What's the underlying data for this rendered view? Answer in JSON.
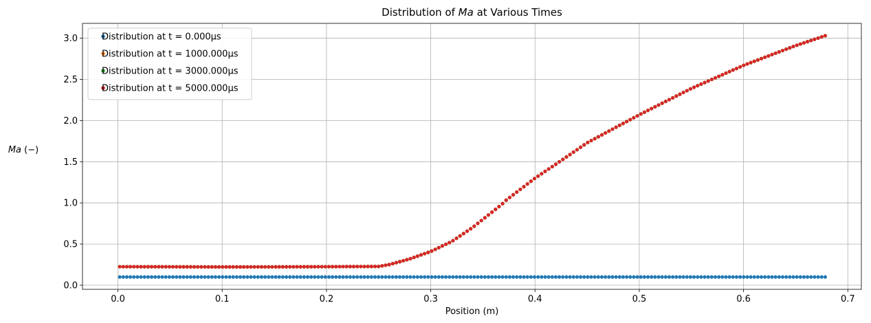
{
  "chart_data": {
    "type": "scatter",
    "title_prefix": "Distribution of ",
    "title_var": "Ma",
    "title_suffix": " at Various Times",
    "xlabel": "Position (m)",
    "ylabel_var": "Ma",
    "ylabel_unit": " (−)",
    "xlim": [
      -0.034,
      0.713
    ],
    "ylim": [
      -0.05,
      3.18
    ],
    "xticks": [
      0.0,
      0.1,
      0.2,
      0.3,
      0.4,
      0.5,
      0.6,
      0.7
    ],
    "xtick_labels": [
      "0.0",
      "0.1",
      "0.2",
      "0.3",
      "0.4",
      "0.5",
      "0.6",
      "0.7"
    ],
    "yticks": [
      0.0,
      0.5,
      1.0,
      1.5,
      2.0,
      2.5,
      3.0
    ],
    "ytick_labels": [
      "0.0",
      "0.5",
      "1.0",
      "1.5",
      "2.0",
      "2.5",
      "3.0"
    ],
    "grid": true,
    "legend_position": "top-left",
    "x_range": [
      0.0017,
      0.6783
    ],
    "n_points": 200,
    "series": [
      {
        "name_prefix": "Distribution at t = ",
        "name_value": "0.000",
        "name_unit": "μs",
        "color": "#1f77b4",
        "profile_x": [
          0.0017,
          0.6783
        ],
        "profile_y": [
          0.1,
          0.1
        ]
      },
      {
        "name_prefix": "Distribution at t = ",
        "name_value": "1000.000",
        "name_unit": "μs",
        "color": "#ff7f0e",
        "profile_x": [
          0.0017,
          0.05,
          0.1,
          0.15,
          0.2,
          0.25,
          0.26,
          0.28,
          0.3,
          0.32,
          0.34,
          0.36,
          0.368,
          0.372,
          0.4,
          0.42,
          0.45,
          0.5,
          0.55,
          0.6,
          0.65,
          0.6783
        ],
        "profile_y": [
          0.225,
          0.224,
          0.222,
          0.223,
          0.225,
          0.228,
          0.25,
          0.32,
          0.41,
          0.53,
          0.7,
          0.9,
          0.98,
          1.03,
          1.3,
          1.47,
          1.73,
          2.07,
          2.39,
          2.67,
          2.91,
          3.03
        ]
      },
      {
        "name_prefix": "Distribution at t = ",
        "name_value": "3000.000",
        "name_unit": "μs",
        "color": "#2ca02c",
        "profile_x": [
          0.0017,
          0.05,
          0.1,
          0.15,
          0.2,
          0.25,
          0.26,
          0.28,
          0.3,
          0.32,
          0.34,
          0.36,
          0.368,
          0.372,
          0.4,
          0.42,
          0.45,
          0.5,
          0.55,
          0.6,
          0.65,
          0.6783
        ],
        "profile_y": [
          0.225,
          0.224,
          0.222,
          0.223,
          0.225,
          0.228,
          0.25,
          0.32,
          0.41,
          0.53,
          0.7,
          0.9,
          0.98,
          1.03,
          1.3,
          1.47,
          1.73,
          2.07,
          2.39,
          2.67,
          2.91,
          3.03
        ]
      },
      {
        "name_prefix": "Distribution at t = ",
        "name_value": "5000.000",
        "name_unit": "μs",
        "color": "#d62728",
        "profile_x": [
          0.0017,
          0.05,
          0.1,
          0.15,
          0.2,
          0.25,
          0.26,
          0.28,
          0.3,
          0.32,
          0.34,
          0.36,
          0.368,
          0.372,
          0.4,
          0.42,
          0.45,
          0.5,
          0.55,
          0.6,
          0.65,
          0.6783
        ],
        "profile_y": [
          0.225,
          0.224,
          0.222,
          0.223,
          0.225,
          0.228,
          0.25,
          0.32,
          0.41,
          0.53,
          0.7,
          0.9,
          0.98,
          1.03,
          1.3,
          1.47,
          1.73,
          2.07,
          2.39,
          2.67,
          2.91,
          3.03
        ]
      }
    ]
  }
}
